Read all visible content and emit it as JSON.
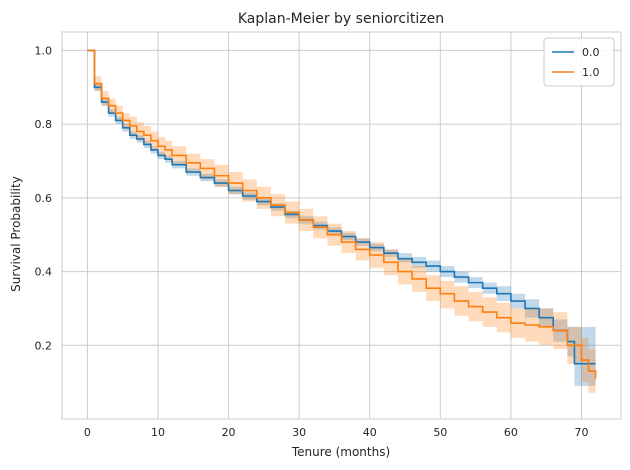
{
  "chart_data": {
    "type": "line",
    "title": "Kaplan-Meier by seniorcitizen",
    "xlabel": "Tenure (months)",
    "ylabel": "Survival Probability",
    "xlim": [
      -3.6,
      75.6
    ],
    "ylim": [
      0.0,
      1.05
    ],
    "xticks": [
      0,
      10,
      20,
      30,
      40,
      50,
      60,
      70
    ],
    "yticks": [
      0.2,
      0.4,
      0.6,
      0.8,
      1.0
    ],
    "xtick_labels": [
      "0",
      "10",
      "20",
      "30",
      "40",
      "50",
      "60",
      "70"
    ],
    "ytick_labels": [
      "0.2",
      "0.4",
      "0.6",
      "0.8",
      "1.0"
    ],
    "grid": true,
    "legend": "top-right",
    "series": [
      {
        "name": "0.0",
        "color": "#1f77b4",
        "step": "post",
        "x": [
          0,
          1,
          2,
          3,
          4,
          5,
          6,
          7,
          8,
          9,
          10,
          11,
          12,
          14,
          16,
          18,
          20,
          22,
          24,
          26,
          28,
          30,
          32,
          34,
          36,
          38,
          40,
          42,
          44,
          46,
          48,
          50,
          52,
          54,
          56,
          58,
          60,
          62,
          64,
          66,
          68,
          69,
          70,
          72
        ],
        "y": [
          1.0,
          0.9,
          0.86,
          0.83,
          0.81,
          0.79,
          0.77,
          0.76,
          0.745,
          0.73,
          0.715,
          0.705,
          0.69,
          0.67,
          0.655,
          0.64,
          0.62,
          0.605,
          0.59,
          0.575,
          0.555,
          0.54,
          0.525,
          0.51,
          0.495,
          0.48,
          0.465,
          0.45,
          0.435,
          0.425,
          0.415,
          0.4,
          0.385,
          0.37,
          0.355,
          0.34,
          0.32,
          0.3,
          0.275,
          0.24,
          0.21,
          0.15,
          0.15,
          0.15
        ],
        "ci_lower": [
          1.0,
          0.89,
          0.85,
          0.82,
          0.8,
          0.78,
          0.76,
          0.75,
          0.735,
          0.72,
          0.705,
          0.695,
          0.68,
          0.66,
          0.645,
          0.63,
          0.61,
          0.595,
          0.58,
          0.565,
          0.545,
          0.53,
          0.515,
          0.5,
          0.485,
          0.47,
          0.455,
          0.44,
          0.425,
          0.41,
          0.4,
          0.385,
          0.37,
          0.355,
          0.34,
          0.32,
          0.3,
          0.275,
          0.25,
          0.21,
          0.17,
          0.09,
          0.09,
          0.09
        ],
        "ci_upper": [
          1.0,
          0.91,
          0.87,
          0.84,
          0.82,
          0.8,
          0.78,
          0.77,
          0.755,
          0.74,
          0.725,
          0.715,
          0.7,
          0.68,
          0.665,
          0.65,
          0.63,
          0.615,
          0.6,
          0.585,
          0.565,
          0.55,
          0.535,
          0.52,
          0.505,
          0.49,
          0.475,
          0.46,
          0.45,
          0.44,
          0.43,
          0.415,
          0.4,
          0.385,
          0.37,
          0.36,
          0.34,
          0.325,
          0.3,
          0.27,
          0.25,
          0.25,
          0.25,
          0.25
        ]
      },
      {
        "name": "1.0",
        "color": "#ff7f0e",
        "step": "post",
        "x": [
          0,
          1,
          2,
          3,
          4,
          5,
          6,
          7,
          8,
          9,
          10,
          11,
          12,
          14,
          16,
          18,
          20,
          22,
          24,
          26,
          28,
          30,
          32,
          34,
          36,
          38,
          40,
          42,
          44,
          46,
          48,
          50,
          52,
          54,
          56,
          58,
          60,
          62,
          64,
          66,
          68,
          70,
          71,
          72
        ],
        "y": [
          1.0,
          0.91,
          0.87,
          0.85,
          0.83,
          0.81,
          0.795,
          0.78,
          0.77,
          0.755,
          0.74,
          0.73,
          0.715,
          0.695,
          0.68,
          0.66,
          0.64,
          0.62,
          0.6,
          0.58,
          0.56,
          0.54,
          0.52,
          0.5,
          0.48,
          0.46,
          0.445,
          0.425,
          0.4,
          0.38,
          0.355,
          0.34,
          0.32,
          0.305,
          0.29,
          0.275,
          0.26,
          0.255,
          0.25,
          0.24,
          0.2,
          0.16,
          0.13,
          0.11
        ],
        "ci_lower": [
          1.0,
          0.89,
          0.85,
          0.83,
          0.81,
          0.79,
          0.77,
          0.755,
          0.745,
          0.73,
          0.715,
          0.705,
          0.69,
          0.67,
          0.65,
          0.63,
          0.61,
          0.59,
          0.57,
          0.55,
          0.53,
          0.51,
          0.49,
          0.47,
          0.45,
          0.43,
          0.41,
          0.39,
          0.365,
          0.345,
          0.32,
          0.3,
          0.28,
          0.265,
          0.25,
          0.235,
          0.22,
          0.21,
          0.2,
          0.19,
          0.15,
          0.1,
          0.07,
          0.05
        ],
        "ci_upper": [
          1.0,
          0.93,
          0.89,
          0.87,
          0.85,
          0.83,
          0.82,
          0.805,
          0.795,
          0.78,
          0.765,
          0.755,
          0.74,
          0.72,
          0.705,
          0.69,
          0.67,
          0.65,
          0.63,
          0.61,
          0.59,
          0.57,
          0.55,
          0.53,
          0.51,
          0.49,
          0.48,
          0.46,
          0.435,
          0.415,
          0.39,
          0.375,
          0.36,
          0.345,
          0.33,
          0.315,
          0.3,
          0.3,
          0.3,
          0.29,
          0.25,
          0.22,
          0.19,
          0.17
        ]
      }
    ]
  }
}
